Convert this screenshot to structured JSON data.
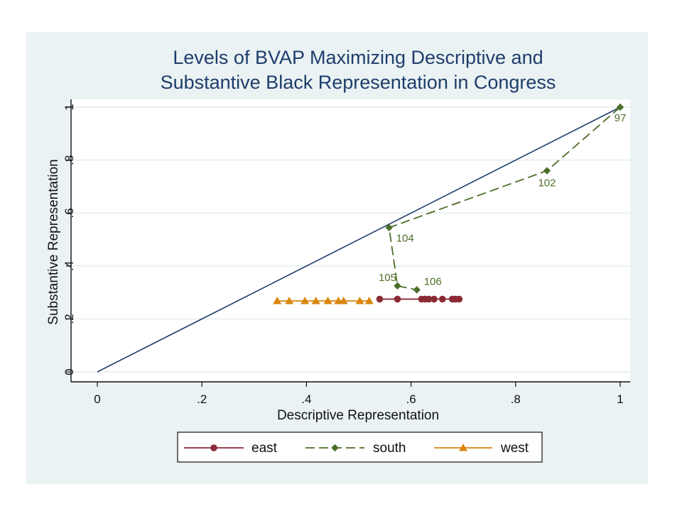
{
  "chart_data": {
    "type": "line",
    "title": [
      "Levels of BVAP Maximizing Descriptive and",
      "Substantive Black Representation in Congress"
    ],
    "xlabel": "Descriptive Representation",
    "ylabel": "Substantive Representation",
    "xlim": [
      0,
      1
    ],
    "ylim": [
      0,
      1
    ],
    "xticks": [
      0,
      0.2,
      0.4,
      0.6,
      0.8,
      1
    ],
    "xtick_labels": [
      "0",
      ".2",
      ".4",
      ".6",
      ".8",
      "1"
    ],
    "yticks": [
      0,
      0.2,
      0.4,
      0.6,
      0.8,
      1
    ],
    "ytick_labels": [
      "0",
      ".2",
      ".4",
      ".6",
      ".8",
      "1"
    ],
    "grid": "horizontal",
    "legend_position": "bottom",
    "reference_line": {
      "x": [
        0,
        1
      ],
      "y": [
        0,
        1
      ],
      "color": "#1f3d6b"
    },
    "series": [
      {
        "name": "east",
        "color": "#8b2a36",
        "marker": "circle",
        "dash": "solid",
        "x": [
          0.54,
          0.574,
          0.62,
          0.627,
          0.634,
          0.644,
          0.66,
          0.679,
          0.685,
          0.692
        ],
        "y": [
          0.275,
          0.275,
          0.275,
          0.275,
          0.275,
          0.275,
          0.275,
          0.275,
          0.275,
          0.275
        ]
      },
      {
        "name": "south",
        "color": "#4d6e28",
        "marker": "diamond",
        "dash": "dashed",
        "x": [
          1.0,
          0.86,
          0.558,
          0.574,
          0.611
        ],
        "y": [
          1.0,
          0.76,
          0.545,
          0.325,
          0.31
        ],
        "labels": [
          "97",
          "102",
          "104",
          "105",
          "106"
        ]
      },
      {
        "name": "west",
        "color": "#d9850e",
        "marker": "triangle",
        "dash": "solid",
        "x": [
          0.344,
          0.367,
          0.397,
          0.418,
          0.441,
          0.461,
          0.471,
          0.502,
          0.52
        ],
        "y": [
          0.268,
          0.268,
          0.268,
          0.268,
          0.268,
          0.268,
          0.268,
          0.268,
          0.268
        ]
      }
    ]
  }
}
